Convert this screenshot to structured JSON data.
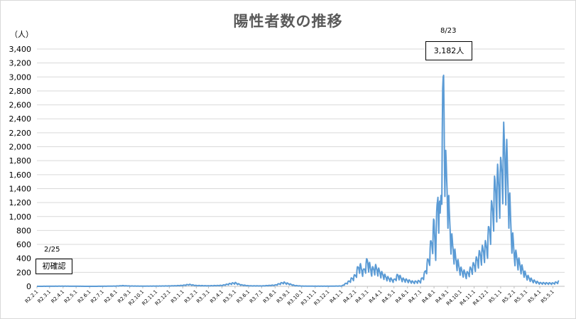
{
  "chart_data": {
    "type": "line",
    "title": "陽性者数の推移",
    "ylabel": "（人）",
    "ylim": [
      0,
      3400
    ],
    "yticks": [
      "0",
      "200",
      "400",
      "600",
      "800",
      "1,000",
      "1,200",
      "1,400",
      "1,600",
      "1,800",
      "2,000",
      "2,200",
      "2,400",
      "2,600",
      "2,800",
      "3,000",
      "3,200",
      "3,400"
    ],
    "x_tick_labels": [
      "R2.2.1",
      "R2.3.1",
      "R2.4.1",
      "R2.5.1",
      "R2.6.1",
      "R2.7.1",
      "R2.8.1",
      "R2.9.1",
      "R2.10.1",
      "R2.11.1",
      "R2.12.1",
      "R3.1.1",
      "R3.2.1",
      "R3.3.1",
      "R3.4.1",
      "R3.5.1",
      "R3.6.1",
      "R3.7.1",
      "R3.8.1",
      "R3.9.1",
      "R3.10.1",
      "R3.11.1",
      "R3.12.1",
      "R4.1.1",
      "R4.2.1",
      "R4.3.1",
      "R4.4.1",
      "R4.5.1",
      "R4.6.1",
      "R4.7.1",
      "R4.8.1",
      "R4.9.1",
      "R4.10.1",
      "R4.11.1",
      "R4.12.1",
      "R5.1.1",
      "R5.2.1",
      "R5.3.1",
      "R5.4.1",
      "R5.5.1"
    ],
    "series": [
      {
        "color": "#5b9bd5",
        "points": [
          [
            "R2.2.1",
            0
          ],
          [
            "R2.3.1",
            1
          ],
          [
            "R2.4.1",
            2
          ],
          [
            "R2.5.1",
            1
          ],
          [
            "R2.6.1",
            0
          ],
          [
            "R2.7.1",
            1
          ],
          [
            "R2.8.1",
            4
          ],
          [
            "R2.8.15",
            10
          ],
          [
            "R2.9.1",
            5
          ],
          [
            "R2.10.1",
            3
          ],
          [
            "R2.11.1",
            4
          ],
          [
            "R2.12.1",
            6
          ],
          [
            "R2.12.20",
            10
          ],
          [
            "R3.1.1",
            14
          ],
          [
            "R3.1.15",
            28
          ],
          [
            "R3.2.1",
            12
          ],
          [
            "R3.3.1",
            8
          ],
          [
            "R3.4.1",
            14
          ],
          [
            "R3.4.20",
            40
          ],
          [
            "R3.5.1",
            52
          ],
          [
            "R3.5.15",
            22
          ],
          [
            "R3.6.1",
            8
          ],
          [
            "R3.7.1",
            6
          ],
          [
            "R3.8.1",
            18
          ],
          [
            "R3.8.20",
            58
          ],
          [
            "R3.9.1",
            40
          ],
          [
            "R3.9.15",
            12
          ],
          [
            "R3.10.1",
            4
          ],
          [
            "R3.11.1",
            2
          ],
          [
            "R3.12.1",
            2
          ],
          [
            "R4.1.1",
            5
          ],
          [
            "R4.1.15",
            60
          ],
          [
            "R4.2.1",
            160
          ],
          [
            "R4.2.10",
            320
          ],
          [
            "R4.2.20",
            220
          ],
          [
            "R4.3.1",
            390
          ],
          [
            "R4.3.10",
            240
          ],
          [
            "R4.3.20",
            280
          ],
          [
            "R4.4.1",
            200
          ],
          [
            "R4.4.15",
            130
          ],
          [
            "R4.5.1",
            90
          ],
          [
            "R4.5.10",
            170
          ],
          [
            "R4.5.20",
            110
          ],
          [
            "R4.6.1",
            90
          ],
          [
            "R4.6.15",
            65
          ],
          [
            "R4.7.1",
            80
          ],
          [
            "R4.7.10",
            180
          ],
          [
            "R4.7.20",
            420
          ],
          [
            "R4.8.1",
            900
          ],
          [
            "R4.8.5",
            620
          ],
          [
            "R4.8.10",
            1450
          ],
          [
            "R4.8.15",
            1000
          ],
          [
            "R4.8.20",
            2200
          ],
          [
            "R4.8.23",
            3182
          ],
          [
            "R4.8.27",
            1800
          ],
          [
            "R4.9.1",
            1500
          ],
          [
            "R4.9.5",
            1050
          ],
          [
            "R4.9.10",
            700
          ],
          [
            "R4.9.20",
            420
          ],
          [
            "R4.10.1",
            250
          ],
          [
            "R4.10.15",
            180
          ],
          [
            "R4.11.1",
            320
          ],
          [
            "R4.11.15",
            480
          ],
          [
            "R4.12.1",
            620
          ],
          [
            "R4.12.10",
            1050
          ],
          [
            "R4.12.20",
            1500
          ],
          [
            "R5.1.1",
            1650
          ],
          [
            "R5.1.8",
            2100
          ],
          [
            "R5.1.15",
            1880
          ],
          [
            "R5.1.25",
            900
          ],
          [
            "R5.2.1",
            520
          ],
          [
            "R5.2.15",
            320
          ],
          [
            "R5.3.1",
            160
          ],
          [
            "R5.3.15",
            90
          ],
          [
            "R5.4.1",
            50
          ],
          [
            "R5.5.1",
            45
          ],
          [
            "R5.5.15",
            70
          ]
        ]
      }
    ],
    "annotations": [
      {
        "date": "2/25",
        "text": "初確認"
      },
      {
        "date": "8/23",
        "text": "3,182人"
      }
    ]
  }
}
